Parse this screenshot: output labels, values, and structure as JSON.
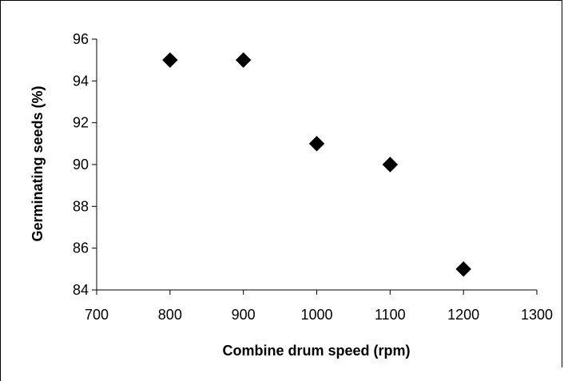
{
  "chart_data": {
    "type": "scatter",
    "xlabel": "Combine drum speed (rpm)",
    "ylabel": "Germinating seeds (%)",
    "xlim": [
      700,
      1300
    ],
    "ylim": [
      84,
      96
    ],
    "xticks": [
      "700",
      "800",
      "900",
      "1000",
      "1100",
      "1200",
      "1300"
    ],
    "yticks": [
      "84",
      "86",
      "88",
      "90",
      "92",
      "94",
      "96"
    ],
    "grid": false,
    "marker": "diamond",
    "marker_color": "#000000",
    "series": [
      {
        "x": [
          800,
          900,
          1000,
          1100,
          1200
        ],
        "y": [
          95,
          95,
          91,
          90,
          85
        ]
      }
    ]
  }
}
